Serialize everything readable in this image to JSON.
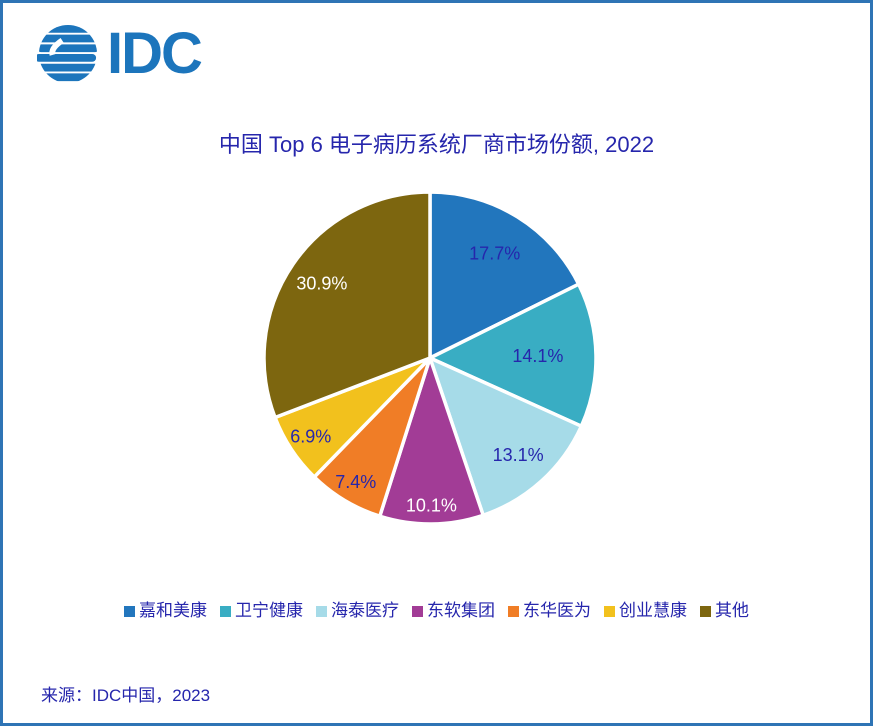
{
  "logo": {
    "text": "IDC"
  },
  "colors": {
    "brand_blue": "#1C75BC",
    "page_border": "#2E74B5",
    "text_navy": "#2626AC",
    "pie_divider": "#FFFFFF"
  },
  "source": {
    "text": "来源：IDC中国，2023"
  },
  "chart_data": {
    "type": "pie",
    "title": "中国 Top 6 电子病历系统厂商市场份额, 2022",
    "start_angle_deg": 0,
    "direction": "clockwise",
    "legend_position": "bottom",
    "slices": [
      {
        "label": "嘉和美康",
        "value": 17.7,
        "display": "17.7%",
        "color": "#2276BD",
        "label_color": "#2626AC",
        "label_radius": 0.74
      },
      {
        "label": "卫宁健康",
        "value": 14.1,
        "display": "14.1%",
        "color": "#39ADC3",
        "label_color": "#2626AC",
        "label_radius": 0.65
      },
      {
        "label": "海泰医疗",
        "value": 13.1,
        "display": "13.1%",
        "color": "#A6DBE8",
        "label_color": "#2626AC",
        "label_radius": 0.79
      },
      {
        "label": "东软集团",
        "value": 10.1,
        "display": "10.1%",
        "color": "#A23C96",
        "label_color": "#FFFFFF",
        "label_radius": 0.89
      },
      {
        "label": "东华医为",
        "value": 7.4,
        "display": "7.4%",
        "color": "#F07D26",
        "label_color": "#2626AC",
        "label_radius": 0.87
      },
      {
        "label": "创业慧康",
        "value": 6.9,
        "display": "6.9%",
        "color": "#F2C11D",
        "label_color": "#2626AC",
        "label_radius": 0.86
      },
      {
        "label": "其他",
        "value": 30.9,
        "display": "30.9%",
        "color": "#7D660F",
        "label_color": "#FFFFFF",
        "label_radius": 0.79
      }
    ]
  }
}
